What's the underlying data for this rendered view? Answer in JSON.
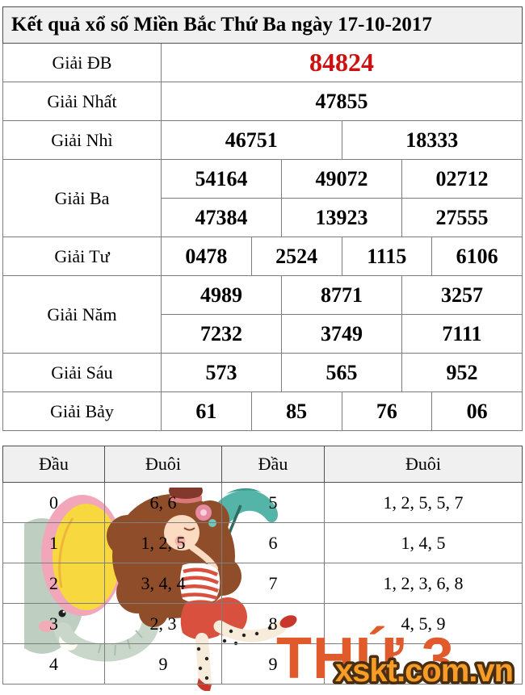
{
  "page": {
    "title": "Kết quả xổ số Miền Bắc Thứ Ba ngày 17-10-2017"
  },
  "results_table": {
    "rows": [
      {
        "label": "Giải ĐB",
        "special": true,
        "groups": [
          [
            "84824"
          ]
        ]
      },
      {
        "label": "Giải Nhất",
        "special": false,
        "groups": [
          [
            "47855"
          ]
        ]
      },
      {
        "label": "Giải Nhì",
        "special": false,
        "groups": [
          [
            "46751",
            "18333"
          ]
        ]
      },
      {
        "label": "Giải Ba",
        "special": false,
        "groups": [
          [
            "54164",
            "49072",
            "02712"
          ],
          [
            "47384",
            "13923",
            "27555"
          ]
        ]
      },
      {
        "label": "Giải Tư",
        "special": false,
        "groups": [
          [
            "0478",
            "2524",
            "1115",
            "6106"
          ]
        ]
      },
      {
        "label": "Giải Năm",
        "special": false,
        "groups": [
          [
            "4989",
            "8771",
            "3257"
          ],
          [
            "7232",
            "3749",
            "7111"
          ]
        ]
      },
      {
        "label": "Giải Sáu",
        "special": false,
        "groups": [
          [
            "573",
            "565",
            "952"
          ]
        ]
      },
      {
        "label": "Giải Bảy",
        "special": false,
        "groups": [
          [
            "61",
            "85",
            "76",
            "06"
          ]
        ]
      }
    ]
  },
  "head_tail_table": {
    "headers": [
      "Đầu",
      "Đuôi",
      "Đầu",
      "Đuôi"
    ],
    "rows": [
      [
        "0",
        "6, 6",
        "5",
        "1, 2, 5, 5, 7"
      ],
      [
        "1",
        "1, 2, 5",
        "6",
        "1, 4, 5"
      ],
      [
        "2",
        "3, 4, 4",
        "7",
        "1, 2, 3, 6, 8"
      ],
      [
        "3",
        "2, 3",
        "8",
        "4, 5, 9"
      ],
      [
        "4",
        "9",
        "9",
        ""
      ]
    ]
  },
  "overlays": {
    "weekday_stamp": "THỨ 3",
    "watermark": "xskt.com.vn"
  },
  "icons": {
    "illustration": "girl-with-umbrella-and-elephant-illustration"
  },
  "colors": {
    "special_prize_red": "#cc1111",
    "weekday_stamp_orange": "#e05a2c",
    "watermark_fill": "#f79d27",
    "watermark_outline": "#4a2e10",
    "header_gray": "#f0f0f0",
    "grid_border": "#7e7e7e",
    "outer_border": "#4f4f4f"
  }
}
